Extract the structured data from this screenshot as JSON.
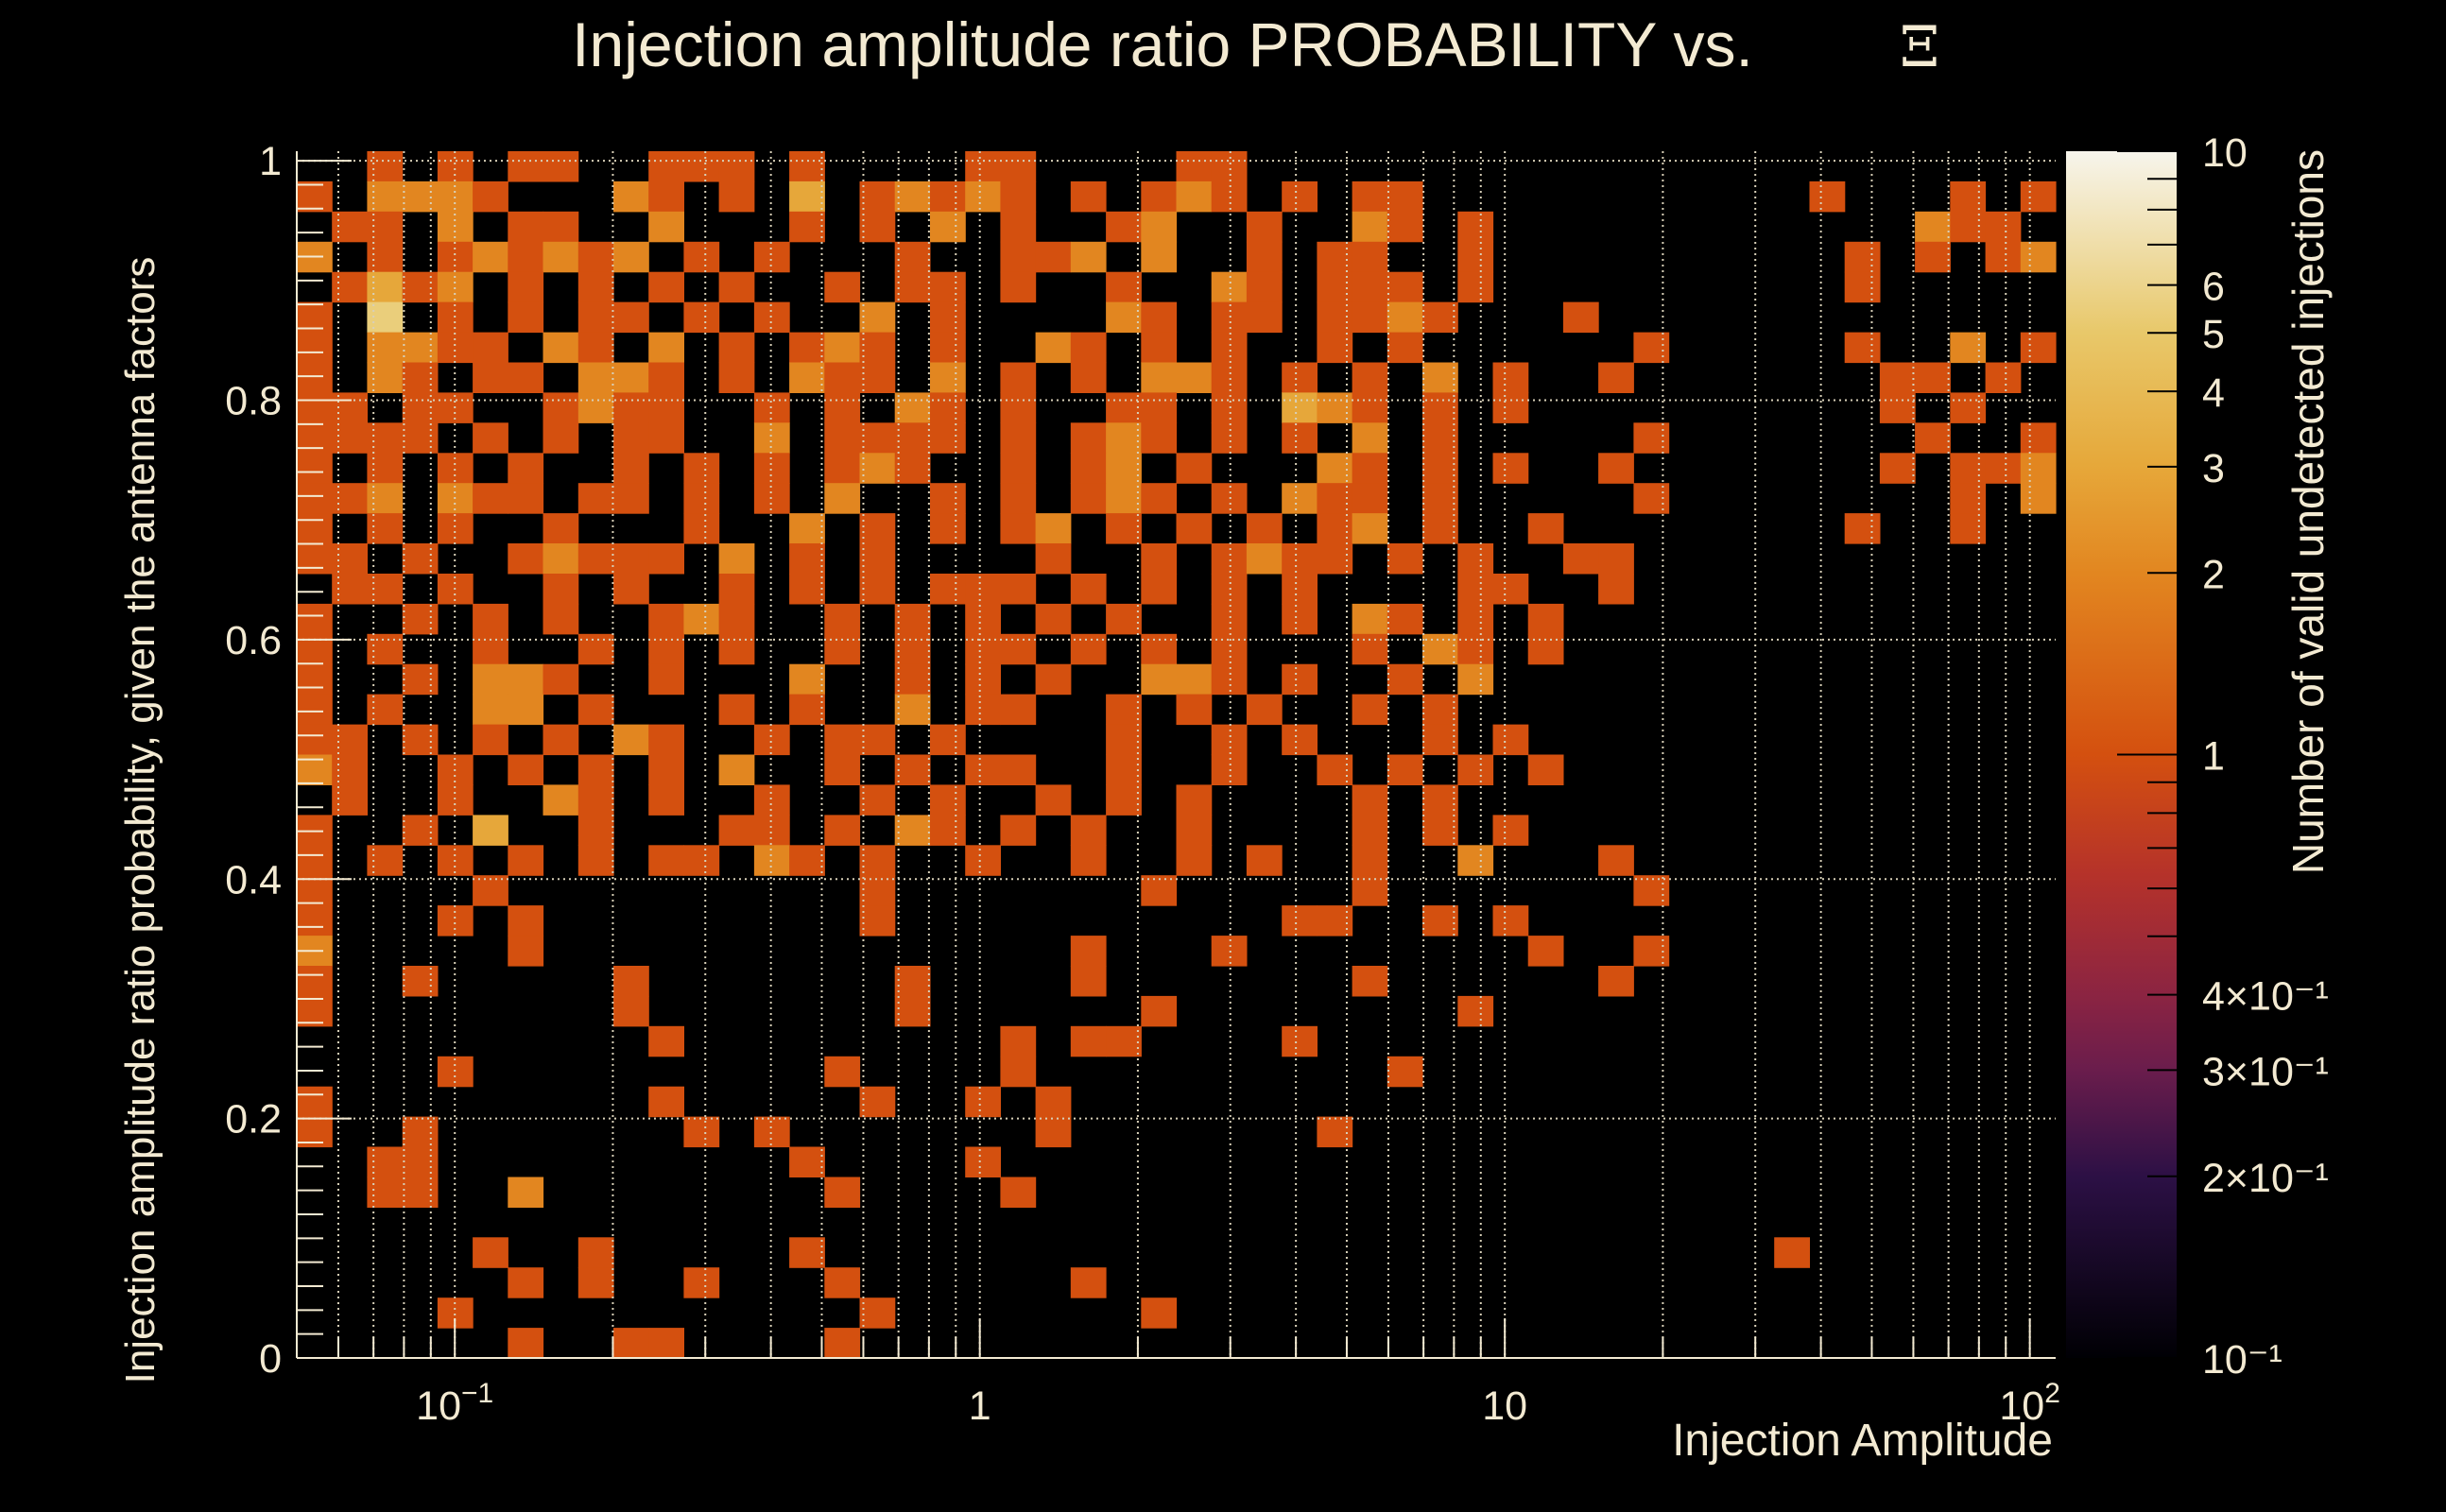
{
  "chart_data": {
    "type": "heatmap",
    "title": "Injection amplitude ratio PROBABILITY vs.",
    "title_symbol": "Ξ",
    "xlabel": "Injection Amplitude",
    "ylabel": "Injection amplitude ratio probability, given the antenna factors",
    "zlabel": "Number of valid undetected injections",
    "xscale": "log",
    "xlim": [
      0.05,
      112
    ],
    "ylim": [
      0,
      1.008
    ],
    "zscale": "log",
    "zlim": [
      0.1,
      10
    ],
    "x_bins": 50,
    "y_bins": 40,
    "grid": true,
    "x_ticks": [
      {
        "v": 0.1,
        "base": "10",
        "exp": "−1"
      },
      {
        "v": 1,
        "base": "1",
        "exp": ""
      },
      {
        "v": 10,
        "base": "10",
        "exp": ""
      },
      {
        "v": 100,
        "base": "10",
        "exp": "2"
      }
    ],
    "y_ticks": [
      {
        "v": 0,
        "label": "0"
      },
      {
        "v": 0.2,
        "label": "0.2"
      },
      {
        "v": 0.4,
        "label": "0.4"
      },
      {
        "v": 0.6,
        "label": "0.6"
      },
      {
        "v": 0.8,
        "label": "0.8"
      },
      {
        "v": 1,
        "label": "1"
      }
    ],
    "z_ticks": [
      {
        "v": 10,
        "label": "10"
      },
      {
        "v": 6,
        "label": "6"
      },
      {
        "v": 5,
        "label": "5"
      },
      {
        "v": 4,
        "label": "4"
      },
      {
        "v": 3,
        "label": "3"
      },
      {
        "v": 2,
        "label": "2"
      },
      {
        "v": 1,
        "label": "1"
      },
      {
        "v": 0.4,
        "label": "4×10⁻¹"
      },
      {
        "v": 0.3,
        "label": "3×10⁻¹"
      },
      {
        "v": 0.2,
        "label": "2×10⁻¹"
      },
      {
        "v": 0.1,
        "label": "10⁻¹"
      }
    ],
    "colormap": [
      "#000004",
      "#2c1045",
      "#6b1d4c",
      "#8b2442",
      "#b5322a",
      "#d4500f",
      "#e28620",
      "#e6a83a",
      "#e8c86a",
      "#f7f5ec"
    ],
    "counts_rows_top_to_bottom": [
      "..1.1.11..111.1....11....11.......................",
      "1.2221...21.1.3.12121.1.121.1.11...........1...1.1",
      ".11.2.11..2...1.1.2.1..12..1..21.1............211.",
      "2.1.121212.1.1...1..112.2..1.11..1..........1.1.12",
      ".1312.1.1.1.1..1.11.1..1..21.111.1..........1.....",
      "1.5.1.1.11.1.1..2.1....21.11.1121...1.............",
      "1.2211.21.2.1.121.1..21.1.1..1.1......1.....1..2.1",
      "1.21.11.221.1.211.2.1.1.221.1.1.2.1..1.......11.1.",
      "11.11..1211..1.1.21.1..11.1.321.1.1..........1.1..",
      "1111.1.1.11..2.1111.1.121.1.1.2.1.....1.......1..1",
      "1.1.1.1..1.1.1.121..1.12.1...21.1.1..1.......1.112",
      "112.211.11.1.1.2..1.1.121.1.211.1.....1........1.2",
      "1.1.1..1...1..2.1.1.12.1.1.1.12.1..1........1..1..",
      "11.1..12111.2.1.1....1..1.1211.1.1..11............",
      ".11.1..1.1..1.1.1.111.1.1.1.1....11..1............",
      "1..1.1.1..121..1.1.1.1.1..1.1.21.1.1..............",
      "1.1..1..1.1.1..1.1.11.1.1.1...1.21.1..............",
      "1..1.221..1...2..1.1.1..221.1..1.2................",
      "1.1..22.1...1.1..2.11..1.1.1..1.1.................",
      "11.1.1.1.21..1.11.1....1..1.1...1.1...............",
      "21..1.1.1.1.2..1.1.11..1..1..1.1.1.1..............",
      ".1..1..21.1..1..1.1..1.1.1....1.1.................",
      "1..1.3..1...11.1.21.1.1..1....1.1.1...............",
      "1.1.1.1.1.11.21.1..1..1..1.1..1..2...1............",
      "1....1..........1.......1.....1.......1...........",
      "1...1.1.........1...........11..1.1...............",
      "2.....1...............1...1........1..1...........",
      "1..1.....1.......1....1.......1......1............",
      "1........1.......1......1........1................",
      "..........1.........1.11....1.....................",
      "....1..........1....1..........1..................",
      "1.........1.....1..1.1............................",
      "1..1.......1.1.......1.......1....................",
      "..11..........1....1..............................",
      "..11..2........1....1.............................",
      "..................................................",
      ".....1..1.....1...........................1.......",
      "......1.1..1...1......1...........................",
      "....1...........1.......1.........................",
      "......1..11....1.................................."
    ]
  }
}
